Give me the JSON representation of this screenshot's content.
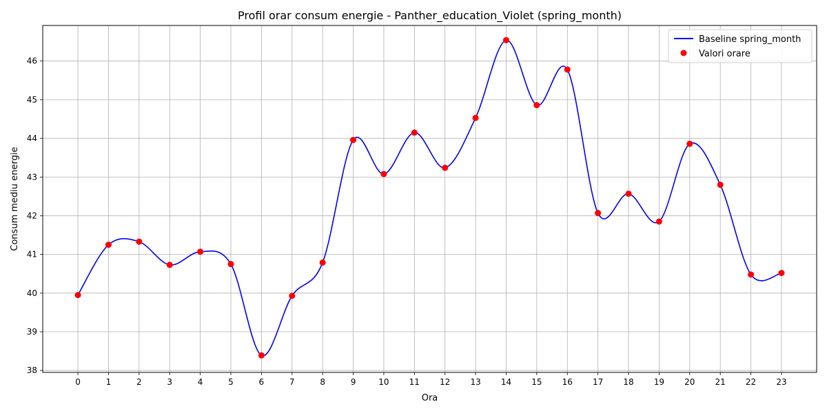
{
  "chart_data": {
    "type": "line",
    "title": "Profil orar consum energie - Panther_education_Violet (spring_month)",
    "xlabel": "Ora",
    "ylabel": "Consum mediu energie",
    "x": [
      0,
      1,
      2,
      3,
      4,
      5,
      6,
      7,
      8,
      9,
      10,
      11,
      12,
      13,
      14,
      15,
      16,
      17,
      18,
      19,
      20,
      21,
      22,
      23
    ],
    "xlim": [
      -1.15,
      24.15
    ],
    "ylim": [
      37.95,
      46.92
    ],
    "yticks": [
      38,
      39,
      40,
      41,
      42,
      43,
      44,
      45,
      46
    ],
    "grid": true,
    "legend_position": "top-right",
    "series": [
      {
        "name": "Baseline spring_month",
        "kind": "line",
        "color": "#0000ff",
        "values": [
          39.95,
          41.25,
          41.33,
          40.73,
          41.07,
          40.75,
          38.39,
          39.93,
          40.79,
          43.96,
          43.08,
          44.15,
          43.24,
          44.53,
          46.54,
          44.86,
          45.78,
          42.07,
          42.57,
          41.85,
          43.86,
          42.8,
          40.48,
          40.52
        ]
      },
      {
        "name": "Valori orare",
        "kind": "scatter",
        "color": "#ff0000",
        "values": [
          39.95,
          41.25,
          41.33,
          40.73,
          41.07,
          40.75,
          38.39,
          39.93,
          40.79,
          43.96,
          43.08,
          44.15,
          43.24,
          44.53,
          46.54,
          44.86,
          45.78,
          42.07,
          42.57,
          41.85,
          43.86,
          42.8,
          40.48,
          40.52
        ]
      }
    ]
  }
}
